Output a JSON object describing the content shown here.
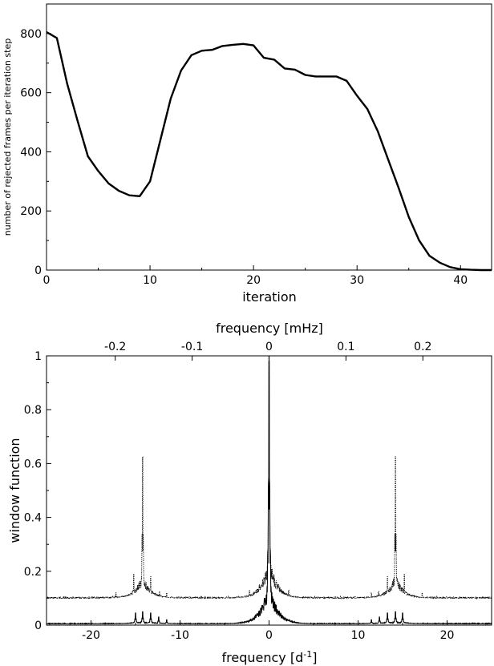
{
  "chart_data": [
    {
      "type": "line",
      "xlabel": "iteration",
      "ylabel": "number of rejected frames per iteration step",
      "xlim": [
        0,
        43
      ],
      "ylim": [
        0,
        900
      ],
      "xticks": [
        0,
        10,
        20,
        30,
        40
      ],
      "yticks": [
        0,
        200,
        400,
        600,
        800
      ],
      "grid": false,
      "series": [
        {
          "x": [
            0,
            1,
            2,
            3,
            4,
            5,
            6,
            7,
            8,
            9,
            10,
            11,
            12,
            13,
            14,
            15,
            16,
            17,
            18,
            19,
            20,
            21,
            22,
            23,
            24,
            25,
            26,
            27,
            28,
            29,
            30,
            31,
            32,
            33,
            34,
            35,
            36,
            37,
            38,
            39,
            40,
            41,
            42,
            43
          ],
          "y": [
            805,
            785,
            630,
            505,
            385,
            335,
            293,
            268,
            253,
            250,
            300,
            440,
            580,
            675,
            727,
            742,
            745,
            758,
            762,
            765,
            760,
            718,
            712,
            682,
            678,
            660,
            655,
            655,
            655,
            640,
            590,
            545,
            470,
            375,
            280,
            180,
            100,
            48,
            25,
            10,
            3,
            1,
            0,
            0
          ]
        }
      ]
    },
    {
      "type": "line",
      "xlabel": "frequency [d",
      "xlabel_sup": "-1",
      "xlabel_end": "]",
      "ylabel": "window function",
      "x2label": "frequency [mHz]",
      "xlim": [
        -25,
        25
      ],
      "ylim": [
        0,
        1
      ],
      "xticks": [
        -20,
        -10,
        0,
        10,
        20
      ],
      "yticks": [
        0,
        0.2,
        0.4,
        0.6,
        0.8,
        1
      ],
      "ytick_labels": [
        "0",
        "0.2",
        "0.4",
        "0.6",
        "0.8",
        "1"
      ],
      "x2ticks": [
        -0.2,
        -0.1,
        0,
        0.1,
        0.2
      ],
      "x2tick_labels": [
        "-0.2",
        "-0.1",
        "0",
        "0.1",
        "0.2"
      ],
      "mHz_per_cd": 0.011574,
      "grid": false,
      "series": [
        {
          "style": "dotted",
          "baseline": 0.1,
          "peaks": [
            {
              "x": 0,
              "y": 1.0
            },
            {
              "x": -14.2,
              "y": 0.625
            },
            {
              "x": 14.2,
              "y": 0.625
            },
            {
              "x": -15.2,
              "y": 0.19
            },
            {
              "x": -13.3,
              "y": 0.18
            },
            {
              "x": 13.3,
              "y": 0.18
            },
            {
              "x": 15.2,
              "y": 0.19
            },
            {
              "x": -1.1,
              "y": 0.15
            },
            {
              "x": 1.1,
              "y": 0.15
            },
            {
              "x": -2.2,
              "y": 0.13
            },
            {
              "x": 2.2,
              "y": 0.13
            },
            {
              "x": -17.2,
              "y": 0.12
            },
            {
              "x": 17.2,
              "y": 0.12
            },
            {
              "x": -11.5,
              "y": 0.12
            },
            {
              "x": 11.5,
              "y": 0.12
            },
            {
              "x": -12.3,
              "y": 0.125
            },
            {
              "x": 12.3,
              "y": 0.125
            }
          ]
        },
        {
          "style": "solid",
          "baseline": 0.005,
          "peaks": [
            {
              "x": 0,
              "y": 0.98
            },
            {
              "x": -15.0,
              "y": 0.045
            },
            {
              "x": -14.2,
              "y": 0.05
            },
            {
              "x": -13.3,
              "y": 0.045
            },
            {
              "x": -12.4,
              "y": 0.03
            },
            {
              "x": -11.5,
              "y": 0.02
            },
            {
              "x": 11.5,
              "y": 0.02
            },
            {
              "x": 12.4,
              "y": 0.03
            },
            {
              "x": 13.3,
              "y": 0.045
            },
            {
              "x": 14.2,
              "y": 0.05
            },
            {
              "x": 15.0,
              "y": 0.045
            }
          ]
        }
      ]
    }
  ]
}
